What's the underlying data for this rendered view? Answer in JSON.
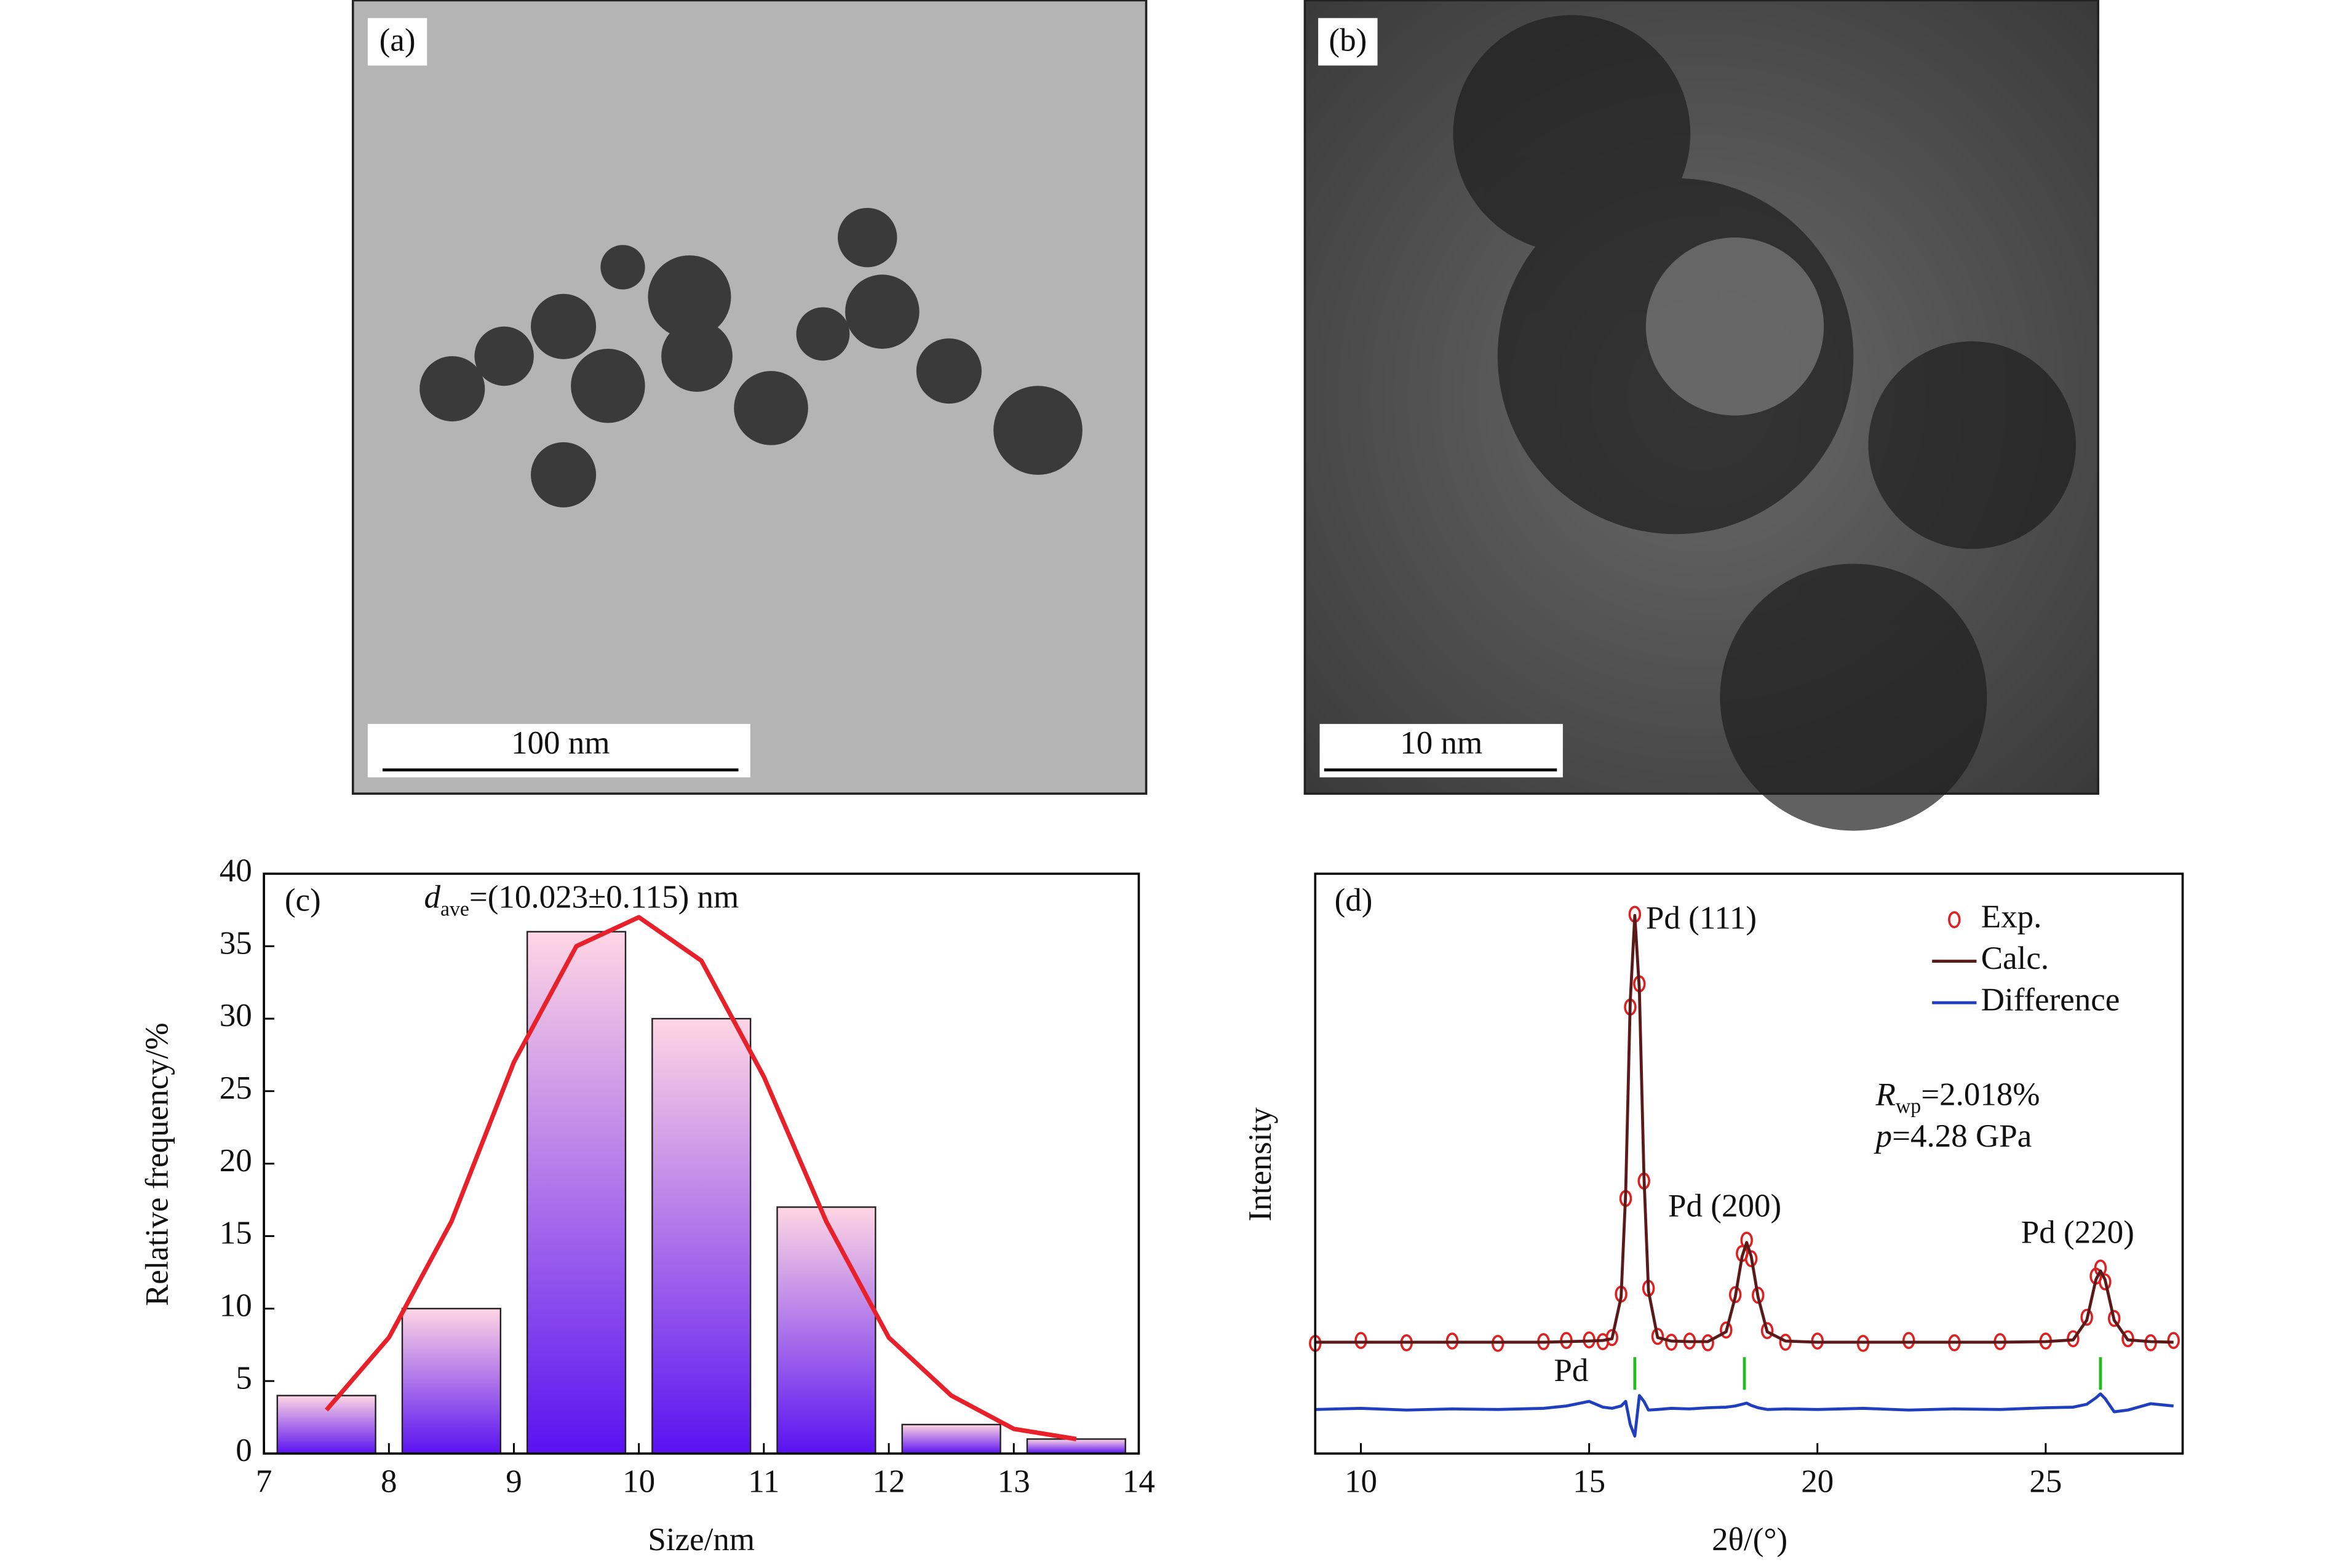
{
  "panels": [
    {
      "label": "(a)",
      "scale_bar": "100 nm"
    },
    {
      "label": "(b)",
      "scale_bar": "10 nm"
    }
  ],
  "chart_data": [
    {
      "type": "histogram",
      "panel_label": "(c)",
      "annotation": {
        "symbol": "d",
        "subscript": "ave",
        "text": "=(10.023±0.115) nm"
      },
      "xlabel": "Size/nm",
      "ylabel": "Relative frequency/%",
      "bins": [
        7,
        8,
        9,
        10,
        11,
        12,
        13,
        14
      ],
      "values": [
        4,
        10,
        36,
        30,
        17,
        2,
        1
      ],
      "gradient": [
        "#5a12f0",
        "#ffd6e4"
      ],
      "fit": {
        "color": "#e8202a",
        "x": [
          7.5,
          8,
          8.5,
          9,
          9.5,
          10,
          10.5,
          11,
          11.5,
          12,
          12.5,
          13,
          13.5
        ],
        "values": [
          3,
          8,
          16,
          27,
          35,
          37,
          34,
          26,
          16,
          8,
          4,
          1.7,
          1
        ]
      },
      "xlim": [
        7,
        14
      ],
      "xticks": [
        7,
        8,
        9,
        10,
        11,
        12,
        13,
        14
      ],
      "ylim": [
        0,
        40
      ],
      "yticks": [
        0,
        5,
        10,
        15,
        20,
        25,
        30,
        35,
        40
      ]
    },
    {
      "type": "line",
      "panel_label": "(d)",
      "xlabel": "2θ/(°)",
      "ylabel": "Intensity",
      "x": [
        9,
        10,
        11,
        12,
        13,
        14,
        14.5,
        15,
        15.3,
        15.5,
        15.7,
        15.8,
        15.9,
        16,
        16.1,
        16.2,
        16.3,
        16.5,
        16.8,
        17.2,
        17.6,
        18,
        18.2,
        18.35,
        18.45,
        18.55,
        18.7,
        18.9,
        19.3,
        20,
        21,
        22,
        23,
        24,
        25,
        25.6,
        25.9,
        26.1,
        26.2,
        26.3,
        26.5,
        26.8,
        27.3,
        27.8
      ],
      "series": [
        {
          "name": "Exp.",
          "color": "#e02020",
          "mode": "markers",
          "values": [
            19.0,
            19.5,
            19.1,
            19.4,
            19.0,
            19.3,
            19.5,
            19.6,
            19.3,
            20.0,
            27.5,
            44,
            77,
            93,
            81,
            47,
            28.5,
            20.2,
            19.2,
            19.4,
            19.1,
            21.3,
            27.4,
            34.5,
            36.8,
            33.6,
            27.3,
            21.2,
            19.2,
            19.4,
            19.0,
            19.5,
            19.1,
            19.3,
            19.4,
            19.8,
            23.5,
            30.6,
            32,
            29.6,
            23.3,
            19.8,
            19.1,
            19.5
          ]
        },
        {
          "name": "Calc.",
          "color": "#5a1a1a",
          "mode": "line",
          "values": [
            19.2,
            19.2,
            19.2,
            19.2,
            19.2,
            19.2,
            19.3,
            19.4,
            19.5,
            19.8,
            27,
            45,
            78,
            92.8,
            80,
            48,
            28,
            20,
            19.4,
            19.3,
            19.3,
            21,
            27,
            34,
            36.4,
            34,
            27,
            21,
            19.4,
            19.2,
            19.2,
            19.2,
            19.2,
            19.2,
            19.3,
            19.6,
            23,
            30,
            31.5,
            30,
            23,
            19.6,
            19.3,
            19.2
          ]
        },
        {
          "name": "Difference",
          "color": "#1f3fbf",
          "mode": "line",
          "values": [
            7.6,
            7.8,
            7.5,
            7.7,
            7.6,
            7.8,
            8.2,
            9.0,
            8.0,
            7.8,
            8.2,
            9.0,
            5.0,
            3.0,
            10.0,
            9.0,
            7.5,
            7.6,
            7.8,
            7.7,
            7.9,
            8.0,
            8.2,
            8.5,
            8.7,
            8.3,
            7.9,
            7.6,
            7.7,
            7.6,
            7.8,
            7.5,
            7.7,
            7.6,
            7.9,
            8.0,
            8.5,
            9.6,
            10.3,
            9.5,
            7.2,
            7.5,
            8.6,
            8.2
          ]
        }
      ],
      "reflections": [
        16.0,
        18.4,
        26.2
      ],
      "reflection_color": "#22bb22",
      "reflection_label": "Pd",
      "annotations": [
        "Pd (111)",
        "Pd (200)",
        "Pd (220)"
      ],
      "stats": [
        {
          "symbol": "R",
          "subscript": "wp",
          "text": "=2.018%"
        },
        {
          "symbol": "p",
          "text": "=4.28 GPa"
        }
      ],
      "xlim": [
        9,
        28
      ],
      "xticks": [
        10,
        15,
        20,
        25
      ],
      "ylim": [
        0,
        100
      ]
    }
  ]
}
